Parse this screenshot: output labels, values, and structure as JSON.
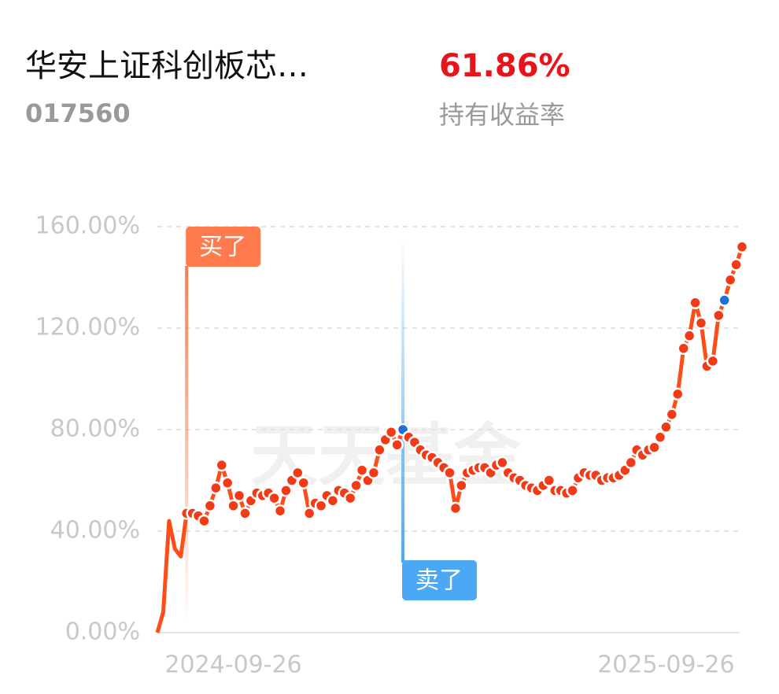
{
  "header": {
    "name": "华安上证科创板芯…",
    "code": "017560",
    "return_value": "61.86%",
    "return_label": "持有收益率"
  },
  "chart_data": {
    "type": "line",
    "watermark": "天天基金",
    "categories": [
      null,
      null,
      null,
      null,
      null,
      null,
      null,
      null,
      null,
      null,
      null,
      null,
      null,
      "2024-09-26",
      null,
      null,
      null,
      null,
      null,
      null,
      null,
      null,
      null,
      null,
      null,
      null,
      null,
      null,
      null,
      null,
      null,
      null,
      null,
      null,
      null,
      null,
      null,
      null,
      null,
      null,
      null,
      null,
      null,
      null,
      null,
      null,
      null,
      null,
      null,
      null,
      null,
      null,
      null,
      null,
      null,
      null,
      null,
      null,
      null,
      null,
      null,
      null,
      null,
      null,
      null,
      null,
      null,
      null,
      null,
      null,
      null,
      null,
      null,
      null,
      null,
      null,
      null,
      null,
      null,
      null,
      null,
      null,
      null,
      null,
      null,
      null,
      null,
      "2025-09-26",
      null,
      null,
      null,
      null,
      null,
      null,
      null,
      null,
      null,
      null,
      null,
      null,
      null
    ],
    "series": [
      {
        "color": "#ff4d1a",
        "values": [
          0,
          8,
          44,
          33,
          30,
          47,
          47,
          46,
          44,
          50,
          57,
          66,
          59,
          50,
          54,
          47,
          52,
          55,
          54,
          55,
          53,
          48,
          56,
          60,
          63,
          59,
          47,
          51,
          50,
          54,
          52,
          56,
          55,
          53,
          58,
          64,
          60,
          63,
          72,
          76,
          79,
          74,
          80,
          77,
          75,
          72,
          70,
          69,
          67,
          65,
          63,
          49,
          58,
          63,
          64,
          65,
          65,
          63,
          66,
          67,
          63,
          61,
          60,
          58,
          57,
          56,
          58,
          60,
          56,
          56,
          55,
          56,
          61,
          63,
          62,
          62,
          60,
          61,
          61,
          62,
          64,
          67,
          72,
          70,
          72,
          73,
          77,
          81,
          86,
          94,
          112,
          117,
          130,
          122,
          105,
          107,
          125,
          131,
          139,
          145,
          152
        ]
      }
    ],
    "ylim": [
      0,
      160
    ],
    "yticks": [
      {
        "value": 0,
        "label": "0.00%"
      },
      {
        "value": 40,
        "label": "40.00%"
      },
      {
        "value": 80,
        "label": "80.00%"
      },
      {
        "value": 120,
        "label": "120.00%"
      },
      {
        "value": 160,
        "label": "160.00%"
      }
    ],
    "grid": true,
    "annotations": [
      {
        "text": "买了",
        "point": 5,
        "color": "#ff7b4d"
      },
      {
        "text": "卖了",
        "point": 42,
        "color": "#4aa8f5"
      }
    ],
    "highlight_points": [
      42,
      97
    ],
    "highlight_color": "#1f6fd6"
  }
}
